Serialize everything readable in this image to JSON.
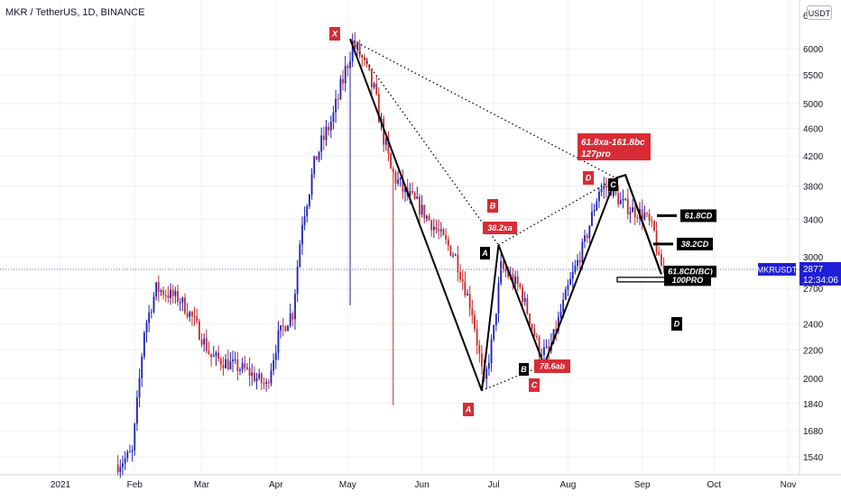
{
  "symbol_title": "MKR / TetherUS, 1D, BINANCE",
  "currency": "USDT",
  "price_tag": {
    "symbol": "MKRUSDT",
    "price": "2877",
    "countdown": "12:34:06",
    "value": 2877
  },
  "colors": {
    "up": "#1c1fb4",
    "down": "#c82a2a",
    "price_line": "#7b5ce6",
    "label_red": "#d92b36",
    "label_black": "#000000",
    "tag_bg": "#1f1fd8"
  },
  "chart_data": {
    "type": "candlestick",
    "y_scale": "log",
    "y_ticks": [
      1540,
      1680,
      1840,
      2000,
      2200,
      2400,
      2700,
      3000,
      3400,
      3800,
      4200,
      4600,
      5000,
      5500,
      6000
    ],
    "y_tick_labels": [
      "1540",
      "1680",
      "1840",
      "2000",
      "2200",
      "2400",
      "2700",
      "3000",
      "3400",
      "3800",
      "4200",
      "4600",
      "5000",
      "5500",
      "6000"
    ],
    "top_partial_tick": "6",
    "x_labels": [
      {
        "label": "2021",
        "date": "2021-01-01"
      },
      {
        "label": "Feb",
        "date": "2021-02-01"
      },
      {
        "label": "Mar",
        "date": "2021-03-01"
      },
      {
        "label": "Apr",
        "date": "2021-04-01"
      },
      {
        "label": "May",
        "date": "2021-05-01"
      },
      {
        "label": "Jun",
        "date": "2021-06-01"
      },
      {
        "label": "Jul",
        "date": "2021-07-01"
      },
      {
        "label": "Aug",
        "date": "2021-08-01"
      },
      {
        "label": "Sep",
        "date": "2021-09-01"
      },
      {
        "label": "Oct",
        "date": "2021-10-01"
      },
      {
        "label": "Nov",
        "date": "2021-11-01"
      }
    ],
    "price_anchors": [
      [
        "2021-01-25",
        1500
      ],
      [
        "2021-01-31",
        1560
      ],
      [
        "2021-02-05",
        2350
      ],
      [
        "2021-02-10",
        2700
      ],
      [
        "2021-02-20",
        2600
      ],
      [
        "2021-02-25",
        2450
      ],
      [
        "2021-03-05",
        2150
      ],
      [
        "2021-03-20",
        2050
      ],
      [
        "2021-03-28",
        1950
      ],
      [
        "2021-04-02",
        2300
      ],
      [
        "2021-04-08",
        2500
      ],
      [
        "2021-04-12",
        3400
      ],
      [
        "2021-04-18",
        4200
      ],
      [
        "2021-04-25",
        4800
      ],
      [
        "2021-05-03",
        6100
      ],
      [
        "2021-05-07",
        5800
      ],
      [
        "2021-05-12",
        5200
      ],
      [
        "2021-05-19",
        4000
      ],
      [
        "2021-05-25",
        3700
      ],
      [
        "2021-06-01",
        3500
      ],
      [
        "2021-06-08",
        3250
      ],
      [
        "2021-06-15",
        3000
      ],
      [
        "2021-06-22",
        2500
      ],
      [
        "2021-06-27",
        1950
      ],
      [
        "2021-07-01",
        2350
      ],
      [
        "2021-07-04",
        2900
      ],
      [
        "2021-07-12",
        2700
      ],
      [
        "2021-07-20",
        2200
      ],
      [
        "2021-07-24",
        2180
      ],
      [
        "2021-08-01",
        2700
      ],
      [
        "2021-08-08",
        3150
      ],
      [
        "2021-08-14",
        3750
      ],
      [
        "2021-08-18",
        3800
      ],
      [
        "2021-08-23",
        3600
      ],
      [
        "2021-08-28",
        3500
      ],
      [
        "2021-09-02",
        3450
      ],
      [
        "2021-09-06",
        3250
      ],
      [
        "2021-09-08",
        2950
      ],
      [
        "2021-09-10",
        2877
      ]
    ],
    "pattern": {
      "points": [
        {
          "label": "X",
          "date": "2021-05-02",
          "price": 6200
        },
        {
          "label": "A",
          "date": "2021-06-26",
          "price": 1920
        },
        {
          "label": "B",
          "date": "2021-07-03",
          "price": 3120
        },
        {
          "label": "C",
          "date": "2021-07-22",
          "price": 2090
        },
        {
          "label": "D",
          "date": "2021-08-21",
          "price": 3900
        }
      ],
      "ratio_labels": [
        "38.2xa",
        "78.6ab",
        "61.8xa-161.8bc",
        "127pro"
      ],
      "projection": {
        "from_label": "C",
        "from_date": "2021-08-25",
        "from_price": 3940,
        "to_date": "2021-09-09",
        "to_price": 2830
      },
      "fib_levels": [
        {
          "label": "61.8CD",
          "price": 3440
        },
        {
          "label": "38.2CD",
          "price": 3130
        },
        {
          "label": "61.8CD(BC)",
          "price": 2860
        },
        {
          "label": "100PRO",
          "price": 2780
        }
      ],
      "target_label": "D"
    }
  }
}
